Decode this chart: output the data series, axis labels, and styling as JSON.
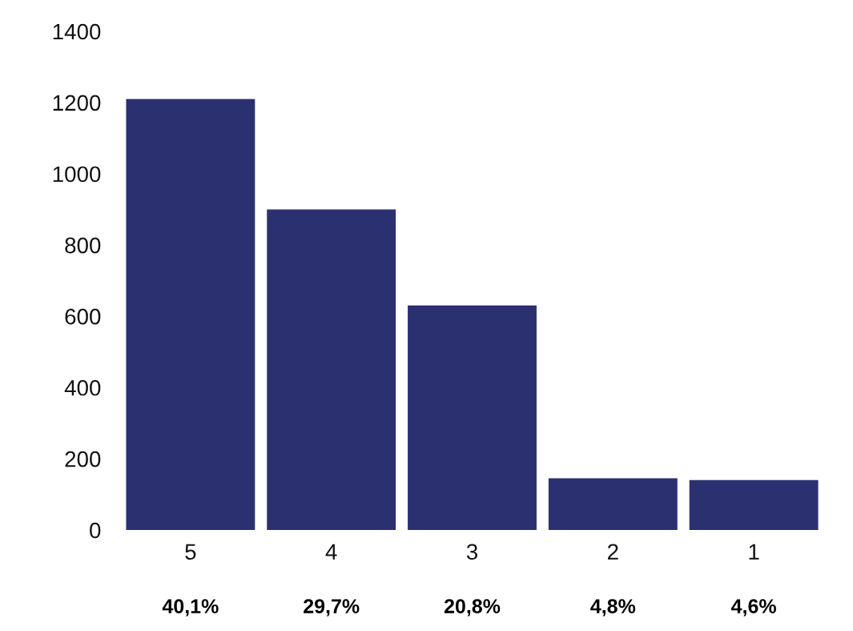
{
  "chart_data": {
    "type": "bar",
    "categories": [
      "5",
      "4",
      "3",
      "2",
      "1"
    ],
    "values": [
      1210,
      900,
      630,
      145,
      140
    ],
    "annotations": [
      "40,1%",
      "29,7%",
      "20,8%",
      "4,8%",
      "4,6%"
    ],
    "color": "#2b3170",
    "ylim": [
      0,
      1400
    ],
    "yticks": [
      0,
      200,
      400,
      600,
      800,
      1000,
      1200,
      1400
    ],
    "grid": false
  }
}
